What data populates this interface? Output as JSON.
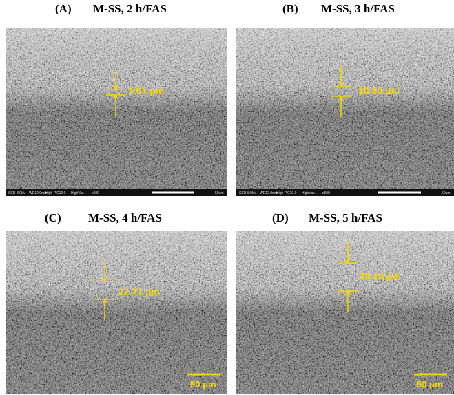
{
  "panels": [
    {
      "label": "(A)",
      "title": "M-SS, 2 h/FAS",
      "measurement": "1.01 μm",
      "info": [
        "SED",
        "8.0kV",
        "WD12.0mm",
        "High-P.C10.0",
        "HighVac.",
        "x500",
        "50um"
      ]
    },
    {
      "label": "(B)",
      "title": "M-SS, 3 h/FAS",
      "measurement": "10.85 μm",
      "info": [
        "SED",
        "8.0kV",
        "WD12.0mm",
        "High-P.C10.0",
        "HighVac.",
        "x500",
        "50um"
      ]
    },
    {
      "label": "(C)",
      "title": "M-SS, 4 h/FAS",
      "measurement": "22.71 μm",
      "scale_bar": "50 μm"
    },
    {
      "label": "(D)",
      "title": "M-SS, 5 h/FAS",
      "measurement": "38.16 μm",
      "scale_bar": "50 μm"
    }
  ]
}
